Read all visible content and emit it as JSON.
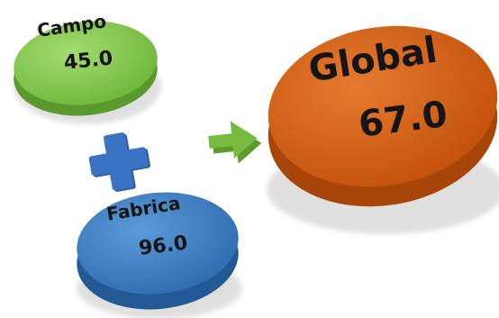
{
  "nodes": {
    "campo": {
      "name": "Campo",
      "value": "45.0",
      "color": "#7cc444",
      "side_color": "#5a9a2c"
    },
    "fabrica": {
      "name": "Fabrica",
      "value": "96.0",
      "color": "#3477bf",
      "side_color": "#235a96"
    },
    "global": {
      "name": "Global",
      "value": "67.0",
      "color": "#cf5a12",
      "side_color": "#a84509"
    }
  },
  "operators": {
    "plus": {
      "icon": "plus-icon",
      "color": "#3a73c4"
    },
    "arrow": {
      "icon": "arrow-right-icon",
      "color": "#76ba3e"
    }
  }
}
